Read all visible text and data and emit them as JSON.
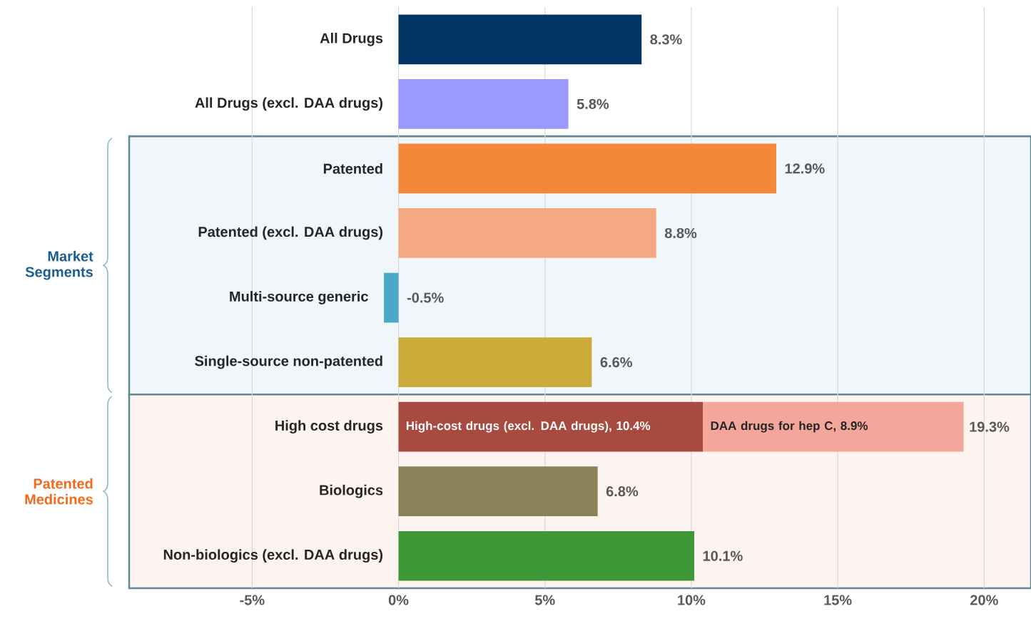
{
  "chart_data": {
    "type": "bar",
    "orientation": "horizontal",
    "stacked": true,
    "categories": [
      "All Drugs",
      "All Drugs (excl. DAA drugs)",
      "Patented",
      "Patented (excl. DAA drugs)",
      "Multi-source generic",
      "Single-source non-patented",
      "High cost drugs",
      "Biologics",
      "Non-biologics (excl. DAA drugs)"
    ],
    "series": [
      {
        "values": [
          8.3,
          5.8,
          12.9,
          8.8,
          -0.5,
          6.6,
          10.4,
          6.8,
          10.1
        ],
        "colors": [
          "#003462",
          "#9999ff",
          "#f5873a",
          "#f4a984",
          "#4aa9c9",
          "#cbab3a",
          "#a84a3f",
          "#8b8058",
          "#3e9837"
        ],
        "value_labels": [
          "8.3%",
          "5.8%",
          "12.9%",
          "8.8%",
          "-0.5%",
          "6.6%",
          "High-cost drugs (excl. DAA drugs), 10.4%",
          "6.8%",
          "10.1%"
        ]
      },
      {
        "values": [
          null,
          null,
          null,
          null,
          null,
          null,
          8.9,
          null,
          null
        ],
        "colors": [
          null,
          null,
          null,
          null,
          null,
          null,
          "#f4a69a",
          null,
          null
        ],
        "value_labels": [
          null,
          null,
          null,
          null,
          null,
          null,
          "DAA drugs for hep C, 8.9%",
          null,
          null
        ]
      }
    ],
    "totals": [
      null,
      null,
      null,
      null,
      null,
      null,
      "19.3%",
      null,
      null
    ],
    "xlim": [
      -9.2,
      21.6
    ],
    "xticks": [
      {
        "value": -5,
        "label": "-5%"
      },
      {
        "value": 0,
        "label": "0%"
      },
      {
        "value": 5,
        "label": "5%"
      },
      {
        "value": 10,
        "label": "10%"
      },
      {
        "value": 15,
        "label": "15%"
      },
      {
        "value": 20,
        "label": "20%"
      }
    ],
    "grid": "x",
    "bands": [
      {
        "axis": "y",
        "from": "Patented",
        "to": "Single-source non-patented",
        "label": "Market Segments",
        "color": "#f1f6fa"
      },
      {
        "axis": "y",
        "from": "High cost drugs",
        "to": "Non-biologics (excl. DAA drugs)",
        "label": "Patented Medicines",
        "color": "#fdf3f1"
      }
    ]
  }
}
